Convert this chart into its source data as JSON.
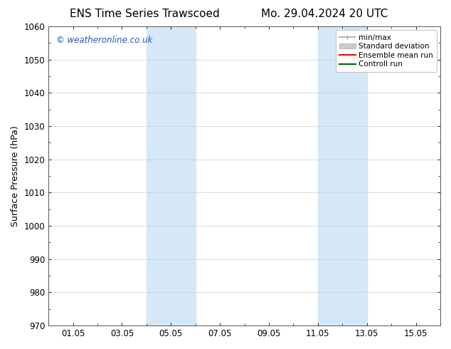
{
  "title_left": "ENS Time Series Trawscoed",
  "title_right": "Mo. 29.04.2024 20 UTC",
  "ylabel": "Surface Pressure (hPa)",
  "ylim": [
    970,
    1060
  ],
  "yticks": [
    970,
    980,
    990,
    1000,
    1010,
    1020,
    1030,
    1040,
    1050,
    1060
  ],
  "xlim_start": 0.0,
  "xlim_end": 16.0,
  "xtick_labels": [
    "01.05",
    "03.05",
    "05.05",
    "07.05",
    "09.05",
    "11.05",
    "13.05",
    "15.05"
  ],
  "xtick_positions": [
    1,
    3,
    5,
    7,
    9,
    11,
    13,
    15
  ],
  "shaded_regions": [
    {
      "x_start": 4.0,
      "x_end": 6.0
    },
    {
      "x_start": 11.0,
      "x_end": 13.0
    }
  ],
  "shaded_color": "#d4e8f7",
  "background_color": "#ffffff",
  "watermark_text": "© weatheronline.co.uk",
  "watermark_color": "#2255bb",
  "legend_entries": [
    {
      "label": "min/max",
      "color": "#aaaaaa",
      "lw": 1.2,
      "style": "line_with_caps"
    },
    {
      "label": "Standard deviation",
      "color": "#cccccc",
      "lw": 7,
      "style": "band"
    },
    {
      "label": "Ensemble mean run",
      "color": "#ff0000",
      "lw": 1.5,
      "style": "line"
    },
    {
      "label": "Controll run",
      "color": "#006600",
      "lw": 1.5,
      "style": "line"
    }
  ],
  "title_fontsize": 11,
  "axis_fontsize": 9,
  "tick_fontsize": 8.5,
  "watermark_fontsize": 8.5,
  "legend_fontsize": 7.5,
  "grid_color": "#cccccc",
  "spine_color": "#555555"
}
